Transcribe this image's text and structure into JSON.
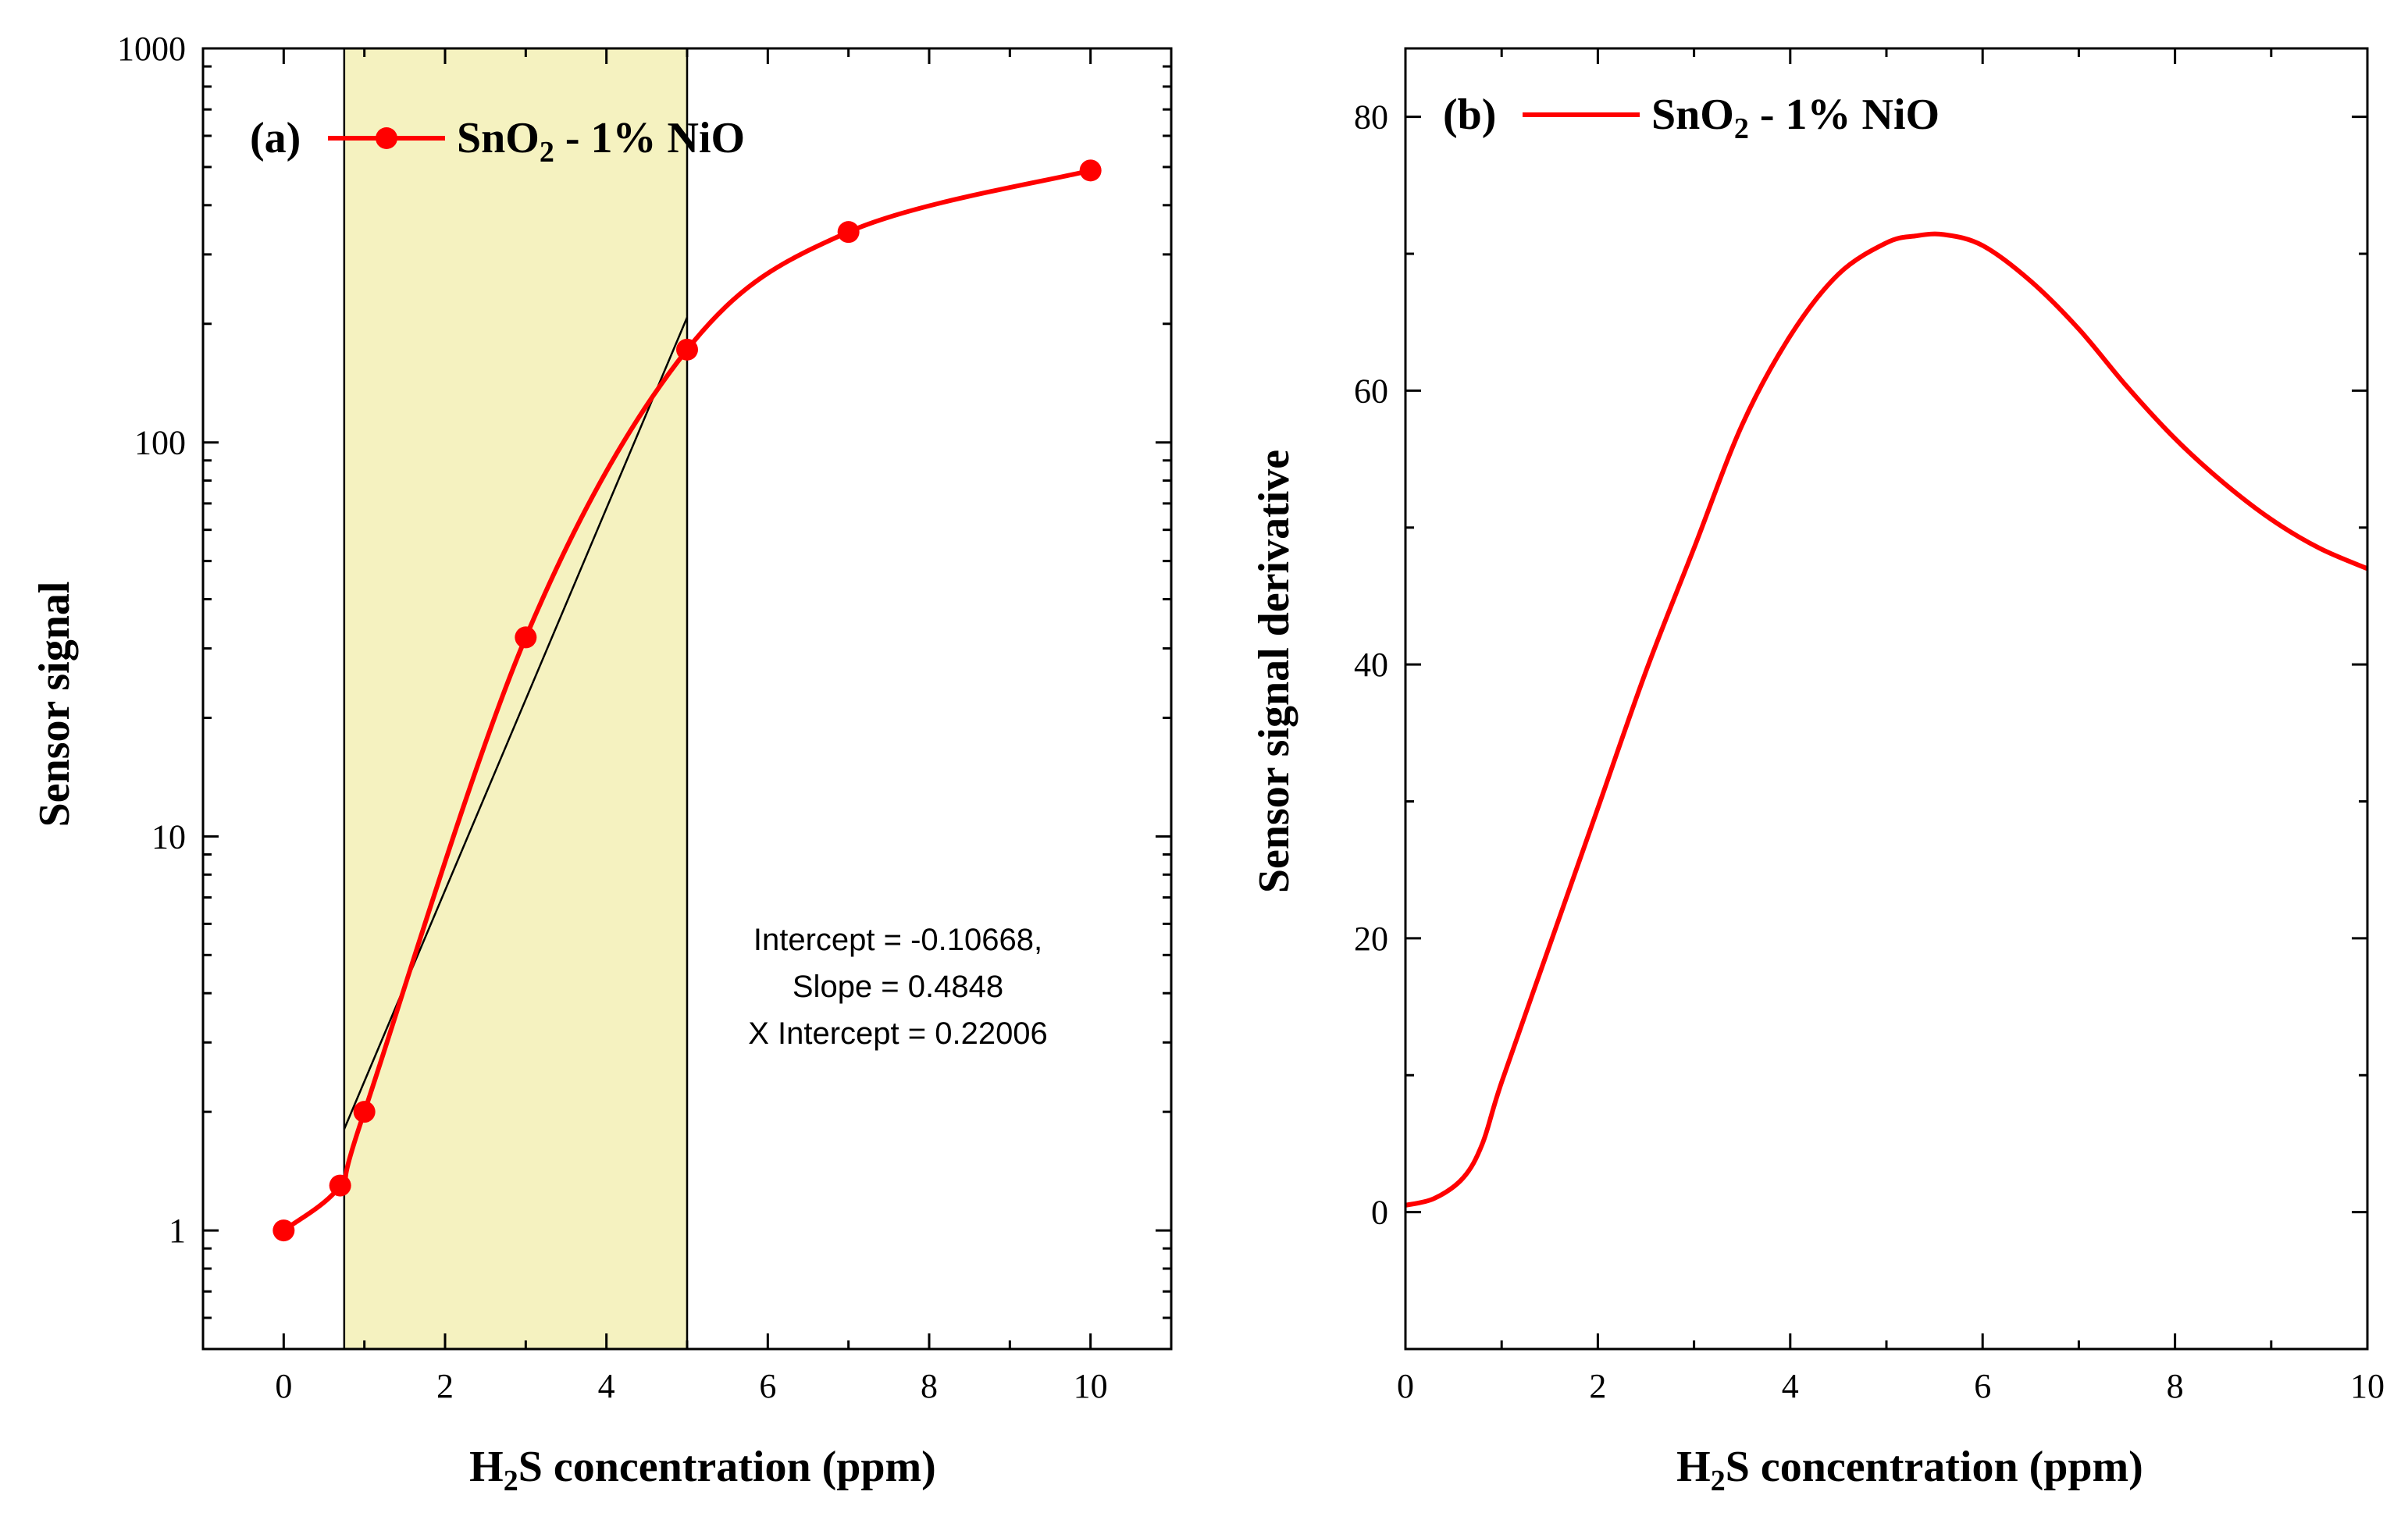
{
  "chart_data": [
    {
      "panel": "(a)",
      "type": "line",
      "scale_y": "log",
      "xlabel_main": "H",
      "xlabel_sub": "2",
      "xlabel_rest": "S concentration (ppm)",
      "ylabel": "Sensor signal",
      "xlim": [
        -1,
        11
      ],
      "ylim": [
        0.5,
        1000
      ],
      "x_ticks": [
        0,
        2,
        4,
        6,
        8,
        10
      ],
      "x_tick_labels": [
        "0",
        "2",
        "4",
        "6",
        "8",
        "10"
      ],
      "y_ticks": [
        1,
        10,
        100,
        1000
      ],
      "y_tick_labels": [
        "1",
        "10",
        "100",
        "1000"
      ],
      "series": [
        {
          "name": "SnO2 - 1% NiO",
          "legend_main": "SnO",
          "legend_sub": "2",
          "legend_rest": " - 1% NiO",
          "color": "#ff0000",
          "marker": "circle",
          "x": [
            0,
            0.7,
            1,
            3,
            5,
            7,
            10
          ],
          "y": [
            1,
            1.3,
            2,
            32,
            172,
            342,
            490
          ]
        }
      ],
      "shaded_region": {
        "x0": 0.75,
        "x1": 5,
        "color": "#f5f2c0"
      },
      "fit_line": {
        "x0": 0.75,
        "x1": 5,
        "intercept": -0.10668,
        "slope": 0.4848,
        "color": "#000000"
      },
      "annotation_lines": [
        "Intercept = -0.10668,",
        "Slope = 0.4848",
        "X Intercept = 0.22006"
      ]
    },
    {
      "panel": "(b)",
      "type": "line",
      "xlabel_main": "H",
      "xlabel_sub": "2",
      "xlabel_rest": "S concentration (ppm)",
      "ylabel": "Sensor signal derivative",
      "xlim": [
        0,
        10
      ],
      "ylim": [
        -10,
        85
      ],
      "x_ticks": [
        0,
        2,
        4,
        6,
        8,
        10
      ],
      "x_tick_labels": [
        "0",
        "2",
        "4",
        "6",
        "8",
        "10"
      ],
      "y_ticks": [
        0,
        20,
        40,
        60,
        80
      ],
      "y_tick_labels": [
        "0",
        "20",
        "40",
        "60",
        "80"
      ],
      "series": [
        {
          "name": "SnO2 - 1% NiO",
          "legend_main": "SnO",
          "legend_sub": "2",
          "legend_rest": " - 1% NiO",
          "color": "#ff0000",
          "x": [
            0,
            0.3,
            0.6,
            0.8,
            1.0,
            1.5,
            2.0,
            2.5,
            3.0,
            3.5,
            4.0,
            4.5,
            5.0,
            5.3,
            5.6,
            6.0,
            6.5,
            7.0,
            7.5,
            8.0,
            8.5,
            9.0,
            9.5,
            10.0
          ],
          "y": [
            0.5,
            1.0,
            2.5,
            5.0,
            9.5,
            19.5,
            29.5,
            39.5,
            48.5,
            57.5,
            64.0,
            68.5,
            70.8,
            71.3,
            71.4,
            70.6,
            68.0,
            64.5,
            60.3,
            56.5,
            53.3,
            50.6,
            48.5,
            47.0
          ]
        }
      ]
    }
  ]
}
